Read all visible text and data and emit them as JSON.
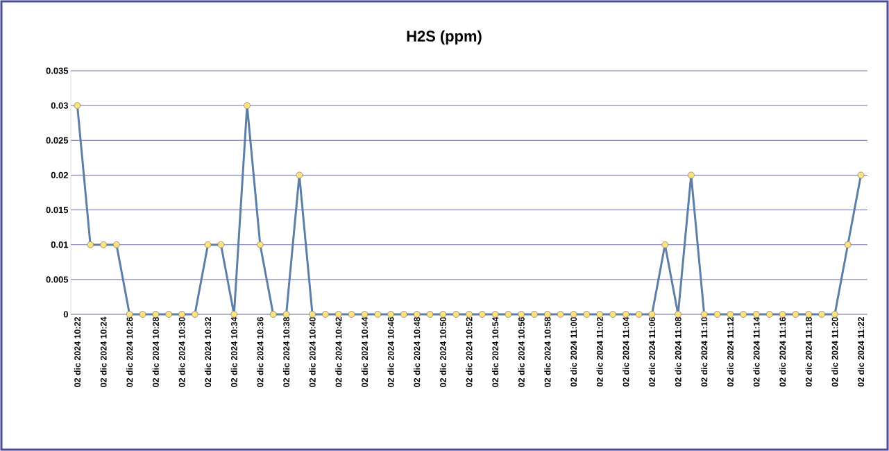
{
  "chart_data": {
    "type": "line",
    "title": "H2S (ppm)",
    "categories": [
      "02 dic 2024 10:22",
      null,
      "02 dic 2024 10:24",
      null,
      "02 dic 2024 10:26",
      null,
      "02 dic 2024 10:28",
      null,
      "02 dic 2024 10:30",
      null,
      "02 dic 2024 10:32",
      null,
      "02 dic 2024 10:34",
      null,
      "02 dic 2024 10:36",
      null,
      "02 dic 2024 10:38",
      null,
      "02 dic 2024 10:40",
      null,
      "02 dic 2024 10:42",
      null,
      "02 dic 2024 10:44",
      null,
      "02 dic 2024 10:46",
      null,
      "02 dic 2024 10:48",
      null,
      "02 dic 2024 10:50",
      null,
      "02 dic 2024 10:52",
      null,
      "02 dic 2024 10:54",
      null,
      "02 dic 2024 10:56",
      null,
      "02 dic 2024 10:58",
      null,
      "02 dic 2024 11:00",
      null,
      "02 dic 2024 11:02",
      null,
      "02 dic 2024 11:04",
      null,
      "02 dic 2024 11:06",
      null,
      "02 dic 2024 11:08",
      null,
      "02 dic 2024 11:10",
      null,
      "02 dic 2024 11:12",
      null,
      "02 dic 2024 11:14",
      null,
      "02 dic 2024 11:16",
      null,
      "02 dic 2024 11:18",
      null,
      "02 dic 2024 11:20",
      null,
      "02 dic 2024 11:22"
    ],
    "series": [
      {
        "color": "#5b7fa6",
        "values": [
          0.03,
          0.01,
          0.01,
          0.01,
          0,
          0,
          0,
          0,
          0,
          0,
          0.01,
          0.01,
          0,
          0.03,
          0.01,
          0,
          0,
          0.02,
          0,
          0,
          0,
          0,
          0,
          0,
          0,
          0,
          0,
          0,
          0,
          0,
          0,
          0,
          0,
          0,
          0,
          0,
          0,
          0,
          0,
          0,
          0,
          0,
          0,
          0,
          0,
          0.01,
          0,
          0.02,
          0,
          0,
          0,
          0,
          0,
          0,
          0,
          0,
          0,
          0,
          0,
          0.01,
          0.02
        ]
      }
    ],
    "ylim": [
      0,
      0.035
    ],
    "yticks": [
      0,
      0.005,
      0.01,
      0.015,
      0.02,
      0.025,
      0.03,
      0.035
    ],
    "grid": "y",
    "marker": "circle",
    "line_style": "solid"
  }
}
